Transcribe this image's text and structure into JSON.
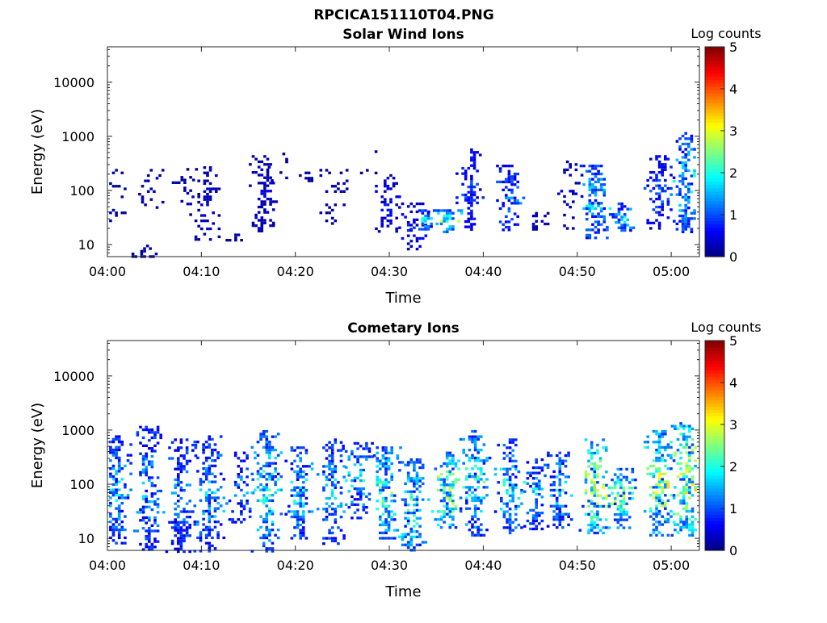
{
  "figure": {
    "title": "RPCICA151110T04.PNG"
  },
  "chart_data": [
    {
      "type": "heatmap",
      "title": "Solar Wind Ions",
      "xlabel": "Time",
      "ylabel": "Energy (eV)",
      "x_ticks": [
        "04:00",
        "04:10",
        "04:20",
        "04:30",
        "04:40",
        "04:50",
        "05:00"
      ],
      "x_range_minutes": [
        0,
        63
      ],
      "y_scale": "log",
      "y_range": [
        6,
        45000
      ],
      "y_ticks": [
        "10",
        "100",
        "1000",
        "10000"
      ],
      "colorbar": {
        "label": "Log counts",
        "range": [
          0,
          5
        ],
        "ticks": [
          "0",
          "1",
          "2",
          "3",
          "4",
          "5"
        ],
        "colormap": "jet"
      },
      "clusters": [
        {
          "t": 0.8,
          "e": [
            25,
            250
          ],
          "dens": 0.3,
          "lvl": 0.2
        },
        {
          "t": 3.8,
          "e": [
            6,
            10
          ],
          "dens": 0.6,
          "lvl": 0.2
        },
        {
          "t": 4.2,
          "e": [
            50,
            250
          ],
          "dens": 0.3,
          "lvl": 0.3
        },
        {
          "t": 8.4,
          "e": [
            35,
            260
          ],
          "dens": 0.2,
          "lvl": 0.2
        },
        {
          "t": 10.5,
          "e": [
            12,
            280
          ],
          "dens": 0.3,
          "lvl": 0.3
        },
        {
          "t": 13.5,
          "e": [
            12,
            16
          ],
          "dens": 0.6,
          "lvl": 0.2
        },
        {
          "t": 16.6,
          "e": [
            18,
            450
          ],
          "dens": 0.5,
          "lvl": 0.35
        },
        {
          "t": 18.0,
          "e": [
            150,
            500
          ],
          "dens": 0.2,
          "lvl": 0.2
        },
        {
          "t": 21.3,
          "e": [
            150,
            250
          ],
          "dens": 0.3,
          "lvl": 0.2
        },
        {
          "t": 23.8,
          "e": [
            25,
            250
          ],
          "dens": 0.2,
          "lvl": 0.2
        },
        {
          "t": 27.5,
          "e": [
            200,
            550
          ],
          "dens": 0.2,
          "lvl": 0.2
        },
        {
          "t": 29.7,
          "e": [
            18,
            200
          ],
          "dens": 0.4,
          "lvl": 0.5
        },
        {
          "t": 32.5,
          "e": [
            8,
            60
          ],
          "dens": 0.4,
          "lvl": 0.5
        },
        {
          "t": 33.7,
          "e": [
            20,
            45
          ],
          "dens": 0.7,
          "lvl": 1.2
        },
        {
          "t": 36.0,
          "e": [
            18,
            45
          ],
          "dens": 0.7,
          "lvl": 1.8
        },
        {
          "t": 38.6,
          "e": [
            18,
            600
          ],
          "dens": 0.5,
          "lvl": 0.7
        },
        {
          "t": 42.6,
          "e": [
            18,
            300
          ],
          "dens": 0.5,
          "lvl": 0.9
        },
        {
          "t": 45.5,
          "e": [
            20,
            40
          ],
          "dens": 0.3,
          "lvl": 0.3
        },
        {
          "t": 48.8,
          "e": [
            20,
            400
          ],
          "dens": 0.2,
          "lvl": 0.3
        },
        {
          "t": 51.8,
          "e": [
            14,
            300
          ],
          "dens": 0.6,
          "lvl": 1.3
        },
        {
          "t": 54.6,
          "e": [
            18,
            60
          ],
          "dens": 0.6,
          "lvl": 1.3
        },
        {
          "t": 58.6,
          "e": [
            20,
            450
          ],
          "dens": 0.5,
          "lvl": 0.8
        },
        {
          "t": 61.4,
          "e": [
            18,
            1200
          ],
          "dens": 0.6,
          "lvl": 1.3
        }
      ]
    },
    {
      "type": "heatmap",
      "title": "Cometary Ions",
      "xlabel": "Time",
      "ylabel": "Energy (eV)",
      "x_ticks": [
        "04:00",
        "04:10",
        "04:20",
        "04:30",
        "04:40",
        "04:50",
        "05:00"
      ],
      "x_range_minutes": [
        0,
        63
      ],
      "y_scale": "log",
      "y_range": [
        6,
        45000
      ],
      "y_ticks": [
        "10",
        "100",
        "1000",
        "10000"
      ],
      "colorbar": {
        "label": "Log counts",
        "range": [
          0,
          5
        ],
        "ticks": [
          "0",
          "1",
          "2",
          "3",
          "4",
          "5"
        ],
        "colormap": "jet"
      },
      "clusters": [
        {
          "t": 0.8,
          "e": [
            8,
            800
          ],
          "dens": 0.65,
          "lvl": 1.2
        },
        {
          "t": 4.3,
          "e": [
            6,
            1200
          ],
          "dens": 0.55,
          "lvl": 1.1
        },
        {
          "t": 7.7,
          "e": [
            6,
            700
          ],
          "dens": 0.55,
          "lvl": 1.0
        },
        {
          "t": 10.7,
          "e": [
            6,
            800
          ],
          "dens": 0.55,
          "lvl": 1.2
        },
        {
          "t": 14.1,
          "e": [
            20,
            400
          ],
          "dens": 0.5,
          "lvl": 1.0
        },
        {
          "t": 16.8,
          "e": [
            6,
            1000
          ],
          "dens": 0.6,
          "lvl": 1.5
        },
        {
          "t": 20.4,
          "e": [
            10,
            500
          ],
          "dens": 0.55,
          "lvl": 1.3
        },
        {
          "t": 23.8,
          "e": [
            8,
            700
          ],
          "dens": 0.5,
          "lvl": 1.2
        },
        {
          "t": 26.5,
          "e": [
            25,
            600
          ],
          "dens": 0.5,
          "lvl": 1.3
        },
        {
          "t": 29.5,
          "e": [
            10,
            500
          ],
          "dens": 0.6,
          "lvl": 1.6
        },
        {
          "t": 32.5,
          "e": [
            6,
            300
          ],
          "dens": 0.6,
          "lvl": 1.6
        },
        {
          "t": 36.0,
          "e": [
            15,
            400
          ],
          "dens": 0.6,
          "lvl": 2.0
        },
        {
          "t": 39.0,
          "e": [
            12,
            1000
          ],
          "dens": 0.6,
          "lvl": 1.5
        },
        {
          "t": 42.7,
          "e": [
            12,
            700
          ],
          "dens": 0.6,
          "lvl": 1.4
        },
        {
          "t": 45.5,
          "e": [
            15,
            300
          ],
          "dens": 0.55,
          "lvl": 1.2
        },
        {
          "t": 48.0,
          "e": [
            15,
            400
          ],
          "dens": 0.55,
          "lvl": 1.3
        },
        {
          "t": 51.7,
          "e": [
            12,
            700
          ],
          "dens": 0.65,
          "lvl": 2.0
        },
        {
          "t": 54.5,
          "e": [
            15,
            200
          ],
          "dens": 0.6,
          "lvl": 1.8
        },
        {
          "t": 58.6,
          "e": [
            12,
            1000
          ],
          "dens": 0.65,
          "lvl": 2.0
        },
        {
          "t": 61.5,
          "e": [
            12,
            1400
          ],
          "dens": 0.7,
          "lvl": 2.2
        }
      ]
    }
  ]
}
